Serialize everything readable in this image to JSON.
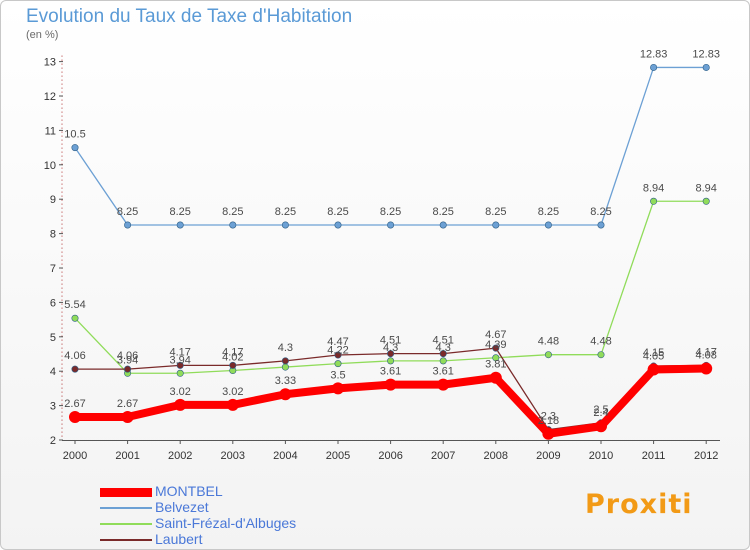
{
  "title": "Evolution du Taux de Taxe d'Habitation",
  "subtitle": "(en %)",
  "brand": "Proxiti",
  "chart_data": {
    "type": "line",
    "title": "Evolution du Taux de Taxe d'Habitation",
    "ylabel": "(en %)",
    "xlabel": "",
    "categories": [
      "2000",
      "2001",
      "2002",
      "2003",
      "2004",
      "2005",
      "2006",
      "2007",
      "2008",
      "2009",
      "2010",
      "2011",
      "2012"
    ],
    "ylim": [
      2,
      13
    ],
    "yticks": [
      2,
      3,
      4,
      5,
      6,
      7,
      8,
      9,
      10,
      11,
      12,
      13
    ],
    "series": [
      {
        "name": "Saint-Frézal-d'Albuges",
        "color": "#90dc5a",
        "values": [
          5.54,
          3.94,
          3.94,
          4.02,
          4.12,
          4.22,
          4.3,
          4.3,
          4.39,
          4.48,
          4.48,
          8.94,
          8.94
        ],
        "labels": [
          "5.54",
          "3.94",
          "3.94",
          "4.02",
          "",
          "4.22",
          "4.3",
          "4.3",
          "4.39",
          "4.48",
          "4.48",
          "8.94",
          "8.94"
        ]
      },
      {
        "name": "Belvezet",
        "color": "#6ca0d4",
        "values": [
          10.5,
          8.25,
          8.25,
          8.25,
          8.25,
          8.25,
          8.25,
          8.25,
          8.25,
          8.25,
          8.25,
          12.83,
          12.83
        ],
        "labels": [
          "10.5",
          "8.25",
          "8.25",
          "8.25",
          "8.25",
          "8.25",
          "8.25",
          "8.25",
          "8.25",
          "8.25",
          "8.25",
          "12.83",
          "12.83"
        ]
      },
      {
        "name": "Laubert",
        "color": "#7a2a2a",
        "values": [
          4.06,
          4.06,
          4.17,
          4.17,
          4.3,
          4.47,
          4.51,
          4.51,
          4.67,
          2.3,
          2.5,
          4.15,
          4.17
        ],
        "labels": [
          "4.06",
          "4.06",
          "4.17",
          "4.17",
          "4.3",
          "4.47",
          "4.51",
          "4.51",
          "4.67",
          "2.3",
          "2.5",
          "4.15",
          "4.17"
        ]
      },
      {
        "name": "MONTBEL",
        "color": "#ff0000",
        "values": [
          2.67,
          2.67,
          3.02,
          3.02,
          3.33,
          3.5,
          3.61,
          3.61,
          3.81,
          2.18,
          2.4,
          4.05,
          4.08
        ],
        "labels": [
          "2.67",
          "2.67",
          "3.02",
          "3.02",
          "3.33",
          "3.5",
          "3.61",
          "3.61",
          "3.81",
          "2.18",
          "2.4",
          "4.05",
          "4.08"
        ]
      }
    ],
    "legend_position": "bottom-left",
    "grid": false
  },
  "legend": [
    {
      "label": "MONTBEL",
      "color": "#ff0000"
    },
    {
      "label": "Belvezet",
      "color": "#6ca0d4"
    },
    {
      "label": "Saint-Frézal-d'Albuges",
      "color": "#90dc5a"
    },
    {
      "label": "Laubert",
      "color": "#7a2a2a"
    }
  ]
}
